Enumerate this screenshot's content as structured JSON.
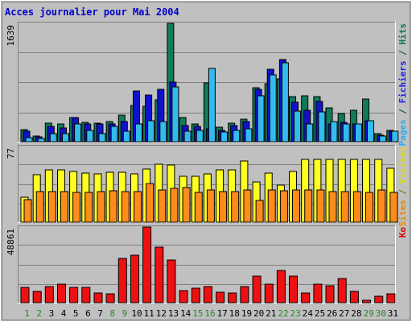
{
  "chart_data": {
    "type": "bar",
    "title": "Acces journalier pour Mai 2004",
    "categories": [
      "1",
      "2",
      "3",
      "4",
      "5",
      "6",
      "7",
      "8",
      "9",
      "10",
      "11",
      "12",
      "13",
      "14",
      "15",
      "16",
      "17",
      "18",
      "19",
      "20",
      "21",
      "22",
      "23",
      "24",
      "25",
      "26",
      "27",
      "28",
      "29",
      "30",
      "31"
    ],
    "weekend_days": [
      "1",
      "2",
      "8",
      "9",
      "15",
      "16",
      "22",
      "23",
      "29",
      "30"
    ],
    "panels": [
      {
        "axis_max_label": "1639",
        "axis_max": 1639,
        "right_label_parts": [
          {
            "text": "Pages",
            "color": "#33aaee"
          },
          {
            "text": " / ",
            "color": "#004444"
          },
          {
            "text": "Fichiers",
            "color": "#2222dd"
          },
          {
            "text": " / ",
            "color": "#004444"
          },
          {
            "text": "Hits",
            "color": "#117755"
          }
        ],
        "series": [
          {
            "name": "Hits",
            "color": "#117a5a",
            "values": [
              170,
              80,
              260,
              250,
              340,
              270,
              260,
              280,
              370,
              500,
              490,
              580,
              1639,
              330,
              240,
              810,
              200,
              260,
              310,
              750,
              800,
              870,
              620,
              640,
              620,
              470,
              390,
              430,
              590,
              110,
              160
            ]
          },
          {
            "name": "Fichiers",
            "color": "#1111cc",
            "values": [
              150,
              70,
              210,
              190,
              330,
              240,
              240,
              250,
              280,
              700,
              650,
              720,
              820,
              220,
              210,
              180,
              160,
              220,
              280,
              730,
              1000,
              1140,
              550,
              440,
              560,
              250,
              270,
              250,
              290,
              90,
              150
            ]
          },
          {
            "name": "Pages",
            "color": "#33bbee",
            "values": [
              60,
              40,
              110,
              110,
              240,
              160,
              110,
              210,
              150,
              250,
              290,
              280,
              760,
              150,
              160,
              1010,
              130,
              160,
              180,
              640,
              930,
              1090,
              420,
              250,
              410,
              280,
              240,
              240,
              290,
              80,
              140
            ]
          }
        ]
      },
      {
        "axis_max_label": "77",
        "axis_max": 77,
        "right_label_parts": [
          {
            "text": "Sites",
            "color": "#ee8800"
          },
          {
            "text": " / ",
            "color": "#886600"
          },
          {
            "text": "Visites",
            "color": "#dddd00"
          }
        ],
        "series": [
          {
            "name": "Visites",
            "color": "#ffff22",
            "values": [
              25,
              48,
              53,
              53,
              52,
              50,
              49,
              51,
              51,
              49,
              54,
              59,
              58,
              47,
              47,
              49,
              53,
              53,
              62,
              41,
              50,
              38,
              52,
              64,
              64,
              64,
              64,
              64,
              64,
              64,
              55
            ]
          },
          {
            "name": "Sites",
            "color": "#ff8c1a",
            "values": [
              23,
              31,
              31,
              31,
              30,
              30,
              31,
              32,
              31,
              31,
              39,
              33,
              34,
              35,
              30,
              33,
              31,
              31,
              33,
              22,
              33,
              32,
              33,
              33,
              33,
              31,
              31,
              31,
              30,
              33,
              30
            ]
          }
        ]
      },
      {
        "axis_max_label": "48861",
        "axis_max": 48861,
        "right_label_parts": [
          {
            "text": "Ko",
            "color": "#dd0000"
          }
        ],
        "series": [
          {
            "name": "Ko",
            "color": "#ee1111",
            "values": [
              9800,
              7500,
              10400,
              11700,
              9900,
              10000,
              6300,
              5700,
              28800,
              30900,
              48861,
              35900,
              27400,
              7900,
              9600,
              10400,
              6800,
              6000,
              10300,
              17100,
              12200,
              21000,
              17400,
              6200,
              11700,
              10800,
              15600,
              7300,
              1800,
              3900,
              5600
            ]
          }
        ]
      }
    ]
  }
}
